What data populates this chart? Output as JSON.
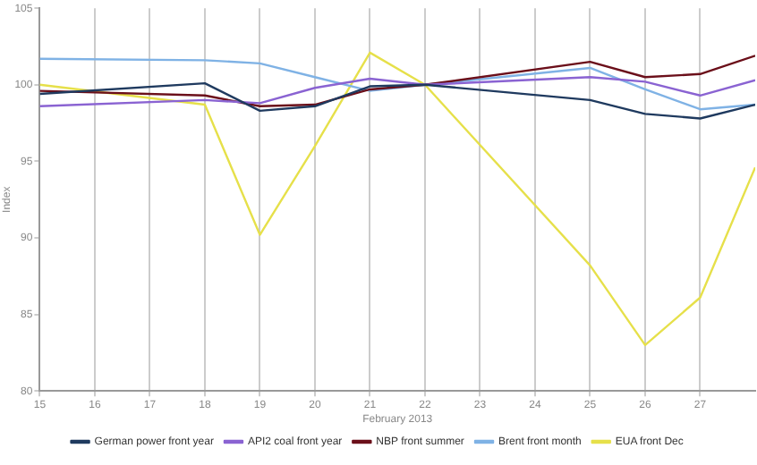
{
  "chart_data": {
    "type": "line",
    "ylabel": "Index",
    "xlabel": "February 2013",
    "x": [
      "2013-02-15",
      "2013-02-18",
      "2013-02-19",
      "2013-02-20",
      "2013-02-21",
      "2013-02-22",
      "2013-02-25",
      "2013-02-26",
      "2013-02-27",
      "2013-02-28"
    ],
    "series": [
      {
        "name": "German power front year",
        "color": "#1f3a5f",
        "values": [
          99.4,
          100.1,
          98.3,
          98.6,
          99.9,
          100,
          99.0,
          98.1,
          97.8,
          98.7
        ]
      },
      {
        "name": "API2 coal front year",
        "color": "#8a63d2",
        "values": [
          98.6,
          99.0,
          98.8,
          99.8,
          100.4,
          100,
          100.5,
          100.2,
          99.3,
          100.3
        ]
      },
      {
        "name": "NBP front summer",
        "color": "#6b0f1a",
        "values": [
          99.6,
          99.3,
          98.6,
          98.7,
          99.7,
          100,
          101.5,
          100.5,
          100.7,
          101.9
        ]
      },
      {
        "name": "Brent front month",
        "color": "#7fb2e5",
        "values": [
          101.7,
          101.6,
          101.4,
          100.5,
          99.6,
          100,
          101.1,
          99.7,
          98.4,
          98.7
        ]
      },
      {
        "name": "EUA front Dec",
        "color": "#e6e04a",
        "values": [
          100.0,
          98.7,
          90.2,
          96,
          102.1,
          100,
          88.2,
          83.0,
          86.1,
          94.6
        ]
      }
    ],
    "xlim": [
      "2013-02-15",
      "2013-02-28"
    ],
    "xticks": [
      {
        "value": "2013-02-15",
        "label": "15"
      },
      {
        "value": "2013-02-16",
        "label": "16"
      },
      {
        "value": "2013-02-17",
        "label": "17"
      },
      {
        "value": "2013-02-18",
        "label": "18"
      },
      {
        "value": "2013-02-19",
        "label": "19"
      },
      {
        "value": "2013-02-20",
        "label": "20"
      },
      {
        "value": "2013-02-21",
        "label": "21"
      },
      {
        "value": "2013-02-22",
        "label": "22"
      },
      {
        "value": "2013-02-23",
        "label": "23"
      },
      {
        "value": "2013-02-24",
        "label": "24"
      },
      {
        "value": "2013-02-25",
        "label": "25"
      },
      {
        "value": "2013-02-26",
        "label": "26"
      },
      {
        "value": "2013-02-27",
        "label": "27"
      }
    ],
    "ylim": [
      80,
      105
    ],
    "yticks": [
      80,
      85,
      90,
      95,
      100,
      105
    ],
    "grid": "x",
    "legend": "bottom",
    "marker": "none",
    "line_style": "solid"
  }
}
